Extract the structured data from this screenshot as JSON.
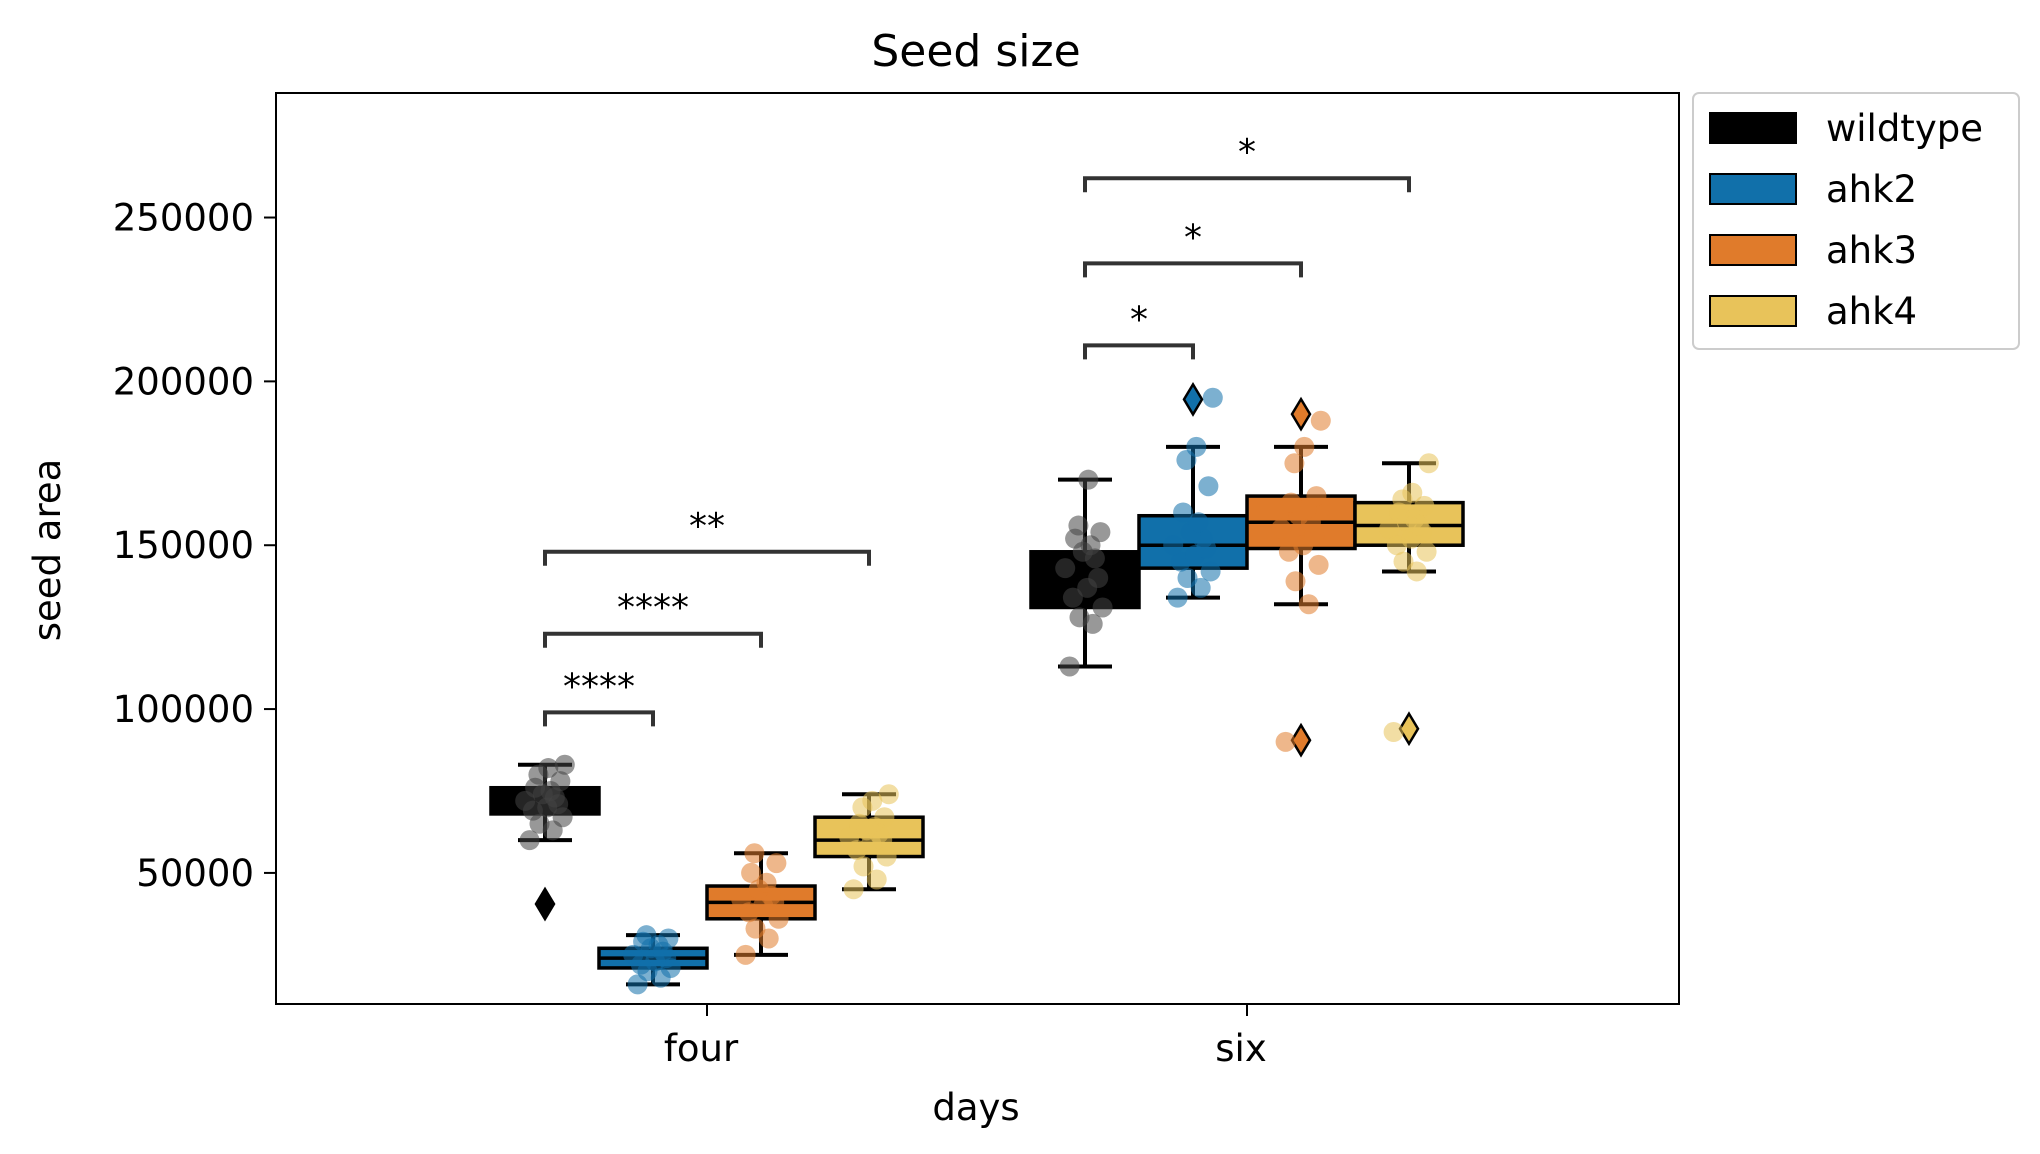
{
  "chart_data": {
    "type": "box",
    "title": "Seed size",
    "xlabel": "days",
    "ylabel": "seed area",
    "categories": [
      "four",
      "six"
    ],
    "ylim": [
      10000,
      288000
    ],
    "yticks": [
      50000,
      100000,
      150000,
      200000,
      250000
    ],
    "grid": false,
    "legend": {
      "placement": "outside-top-right",
      "entries": [
        "wildtype",
        "ahk2",
        "ahk3",
        "ahk4"
      ]
    },
    "colors": {
      "wildtype": "#000000",
      "ahk2": "#1170aa",
      "ahk3": "#e07b2b",
      "ahk4": "#e8c35a"
    },
    "series": [
      {
        "name": "wildtype",
        "boxes": [
          {
            "category": "four",
            "whislo": 60000,
            "q1": 68000,
            "median": 72000,
            "q3": 76000,
            "whishi": 83000,
            "fliers": [
              40500
            ],
            "points": [
              60000,
              63000,
              65000,
              67000,
              69000,
              70000,
              71000,
              72000,
              73000,
              74000,
              75000,
              76000,
              78000,
              80000,
              82000,
              83000
            ]
          },
          {
            "category": "six",
            "whislo": 113000,
            "q1": 131000,
            "median": 138000,
            "q3": 148000,
            "whishi": 170000,
            "fliers": [],
            "points": [
              113000,
              126000,
              128000,
              131000,
              134000,
              137000,
              140000,
              143000,
              146000,
              148000,
              150000,
              152000,
              154000,
              156000,
              170000
            ]
          }
        ]
      },
      {
        "name": "ahk2",
        "boxes": [
          {
            "category": "four",
            "whislo": 16000,
            "q1": 21000,
            "median": 24000,
            "q3": 27000,
            "whishi": 31000,
            "fliers": [],
            "points": [
              16000,
              18000,
              20000,
              21000,
              22000,
              23000,
              24000,
              25000,
              26000,
              27000,
              28000,
              29000,
              30000,
              31000
            ]
          },
          {
            "category": "six",
            "whislo": 134000,
            "q1": 143000,
            "median": 150000,
            "q3": 159000,
            "whishi": 180000,
            "fliers": [
              194500
            ],
            "points": [
              134000,
              137000,
              140000,
              142000,
              145000,
              147000,
              149000,
              150000,
              152000,
              154000,
              157000,
              160000,
              168000,
              176000,
              180000,
              195000
            ]
          }
        ]
      },
      {
        "name": "ahk3",
        "boxes": [
          {
            "category": "four",
            "whislo": 25000,
            "q1": 36000,
            "median": 41000,
            "q3": 46000,
            "whishi": 56000,
            "fliers": [],
            "points": [
              25000,
              30000,
              33000,
              36000,
              38000,
              40000,
              41000,
              42000,
              43000,
              45000,
              47000,
              50000,
              53000,
              56000
            ]
          },
          {
            "category": "six",
            "whislo": 132000,
            "q1": 149000,
            "median": 157000,
            "q3": 165000,
            "whishi": 180000,
            "fliers": [
              90500,
              190000
            ],
            "points": [
              90000,
              132000,
              139000,
              144000,
              148000,
              150000,
              153000,
              155000,
              157000,
              159000,
              161000,
              163000,
              165000,
              175000,
              180000,
              188000
            ]
          }
        ]
      },
      {
        "name": "ahk4",
        "boxes": [
          {
            "category": "four",
            "whislo": 45000,
            "q1": 55000,
            "median": 60000,
            "q3": 67000,
            "whishi": 74000,
            "fliers": [],
            "points": [
              45000,
              48000,
              52000,
              55000,
              57000,
              59000,
              60000,
              61000,
              62000,
              63000,
              64000,
              65000,
              67000,
              70000,
              72000,
              74000
            ]
          },
          {
            "category": "six",
            "whislo": 142000,
            "q1": 150000,
            "median": 156000,
            "q3": 163000,
            "whishi": 175000,
            "fliers": [
              94000
            ],
            "points": [
              93000,
              142000,
              145000,
              148000,
              150000,
              152000,
              154000,
              155000,
              156000,
              157000,
              158000,
              160000,
              162000,
              164000,
              166000,
              175000
            ]
          }
        ]
      }
    ],
    "annotations": [
      {
        "category": "four",
        "from": "wildtype",
        "to": "ahk2",
        "y": 99000,
        "label": "****"
      },
      {
        "category": "four",
        "from": "wildtype",
        "to": "ahk3",
        "y": 123000,
        "label": "****"
      },
      {
        "category": "four",
        "from": "wildtype",
        "to": "ahk4",
        "y": 148000,
        "label": "**"
      },
      {
        "category": "six",
        "from": "wildtype",
        "to": "ahk2",
        "y": 211000,
        "label": "*"
      },
      {
        "category": "six",
        "from": "wildtype",
        "to": "ahk3",
        "y": 236000,
        "label": "*"
      },
      {
        "category": "six",
        "from": "wildtype",
        "to": "ahk4",
        "y": 262000,
        "label": "*"
      }
    ]
  }
}
